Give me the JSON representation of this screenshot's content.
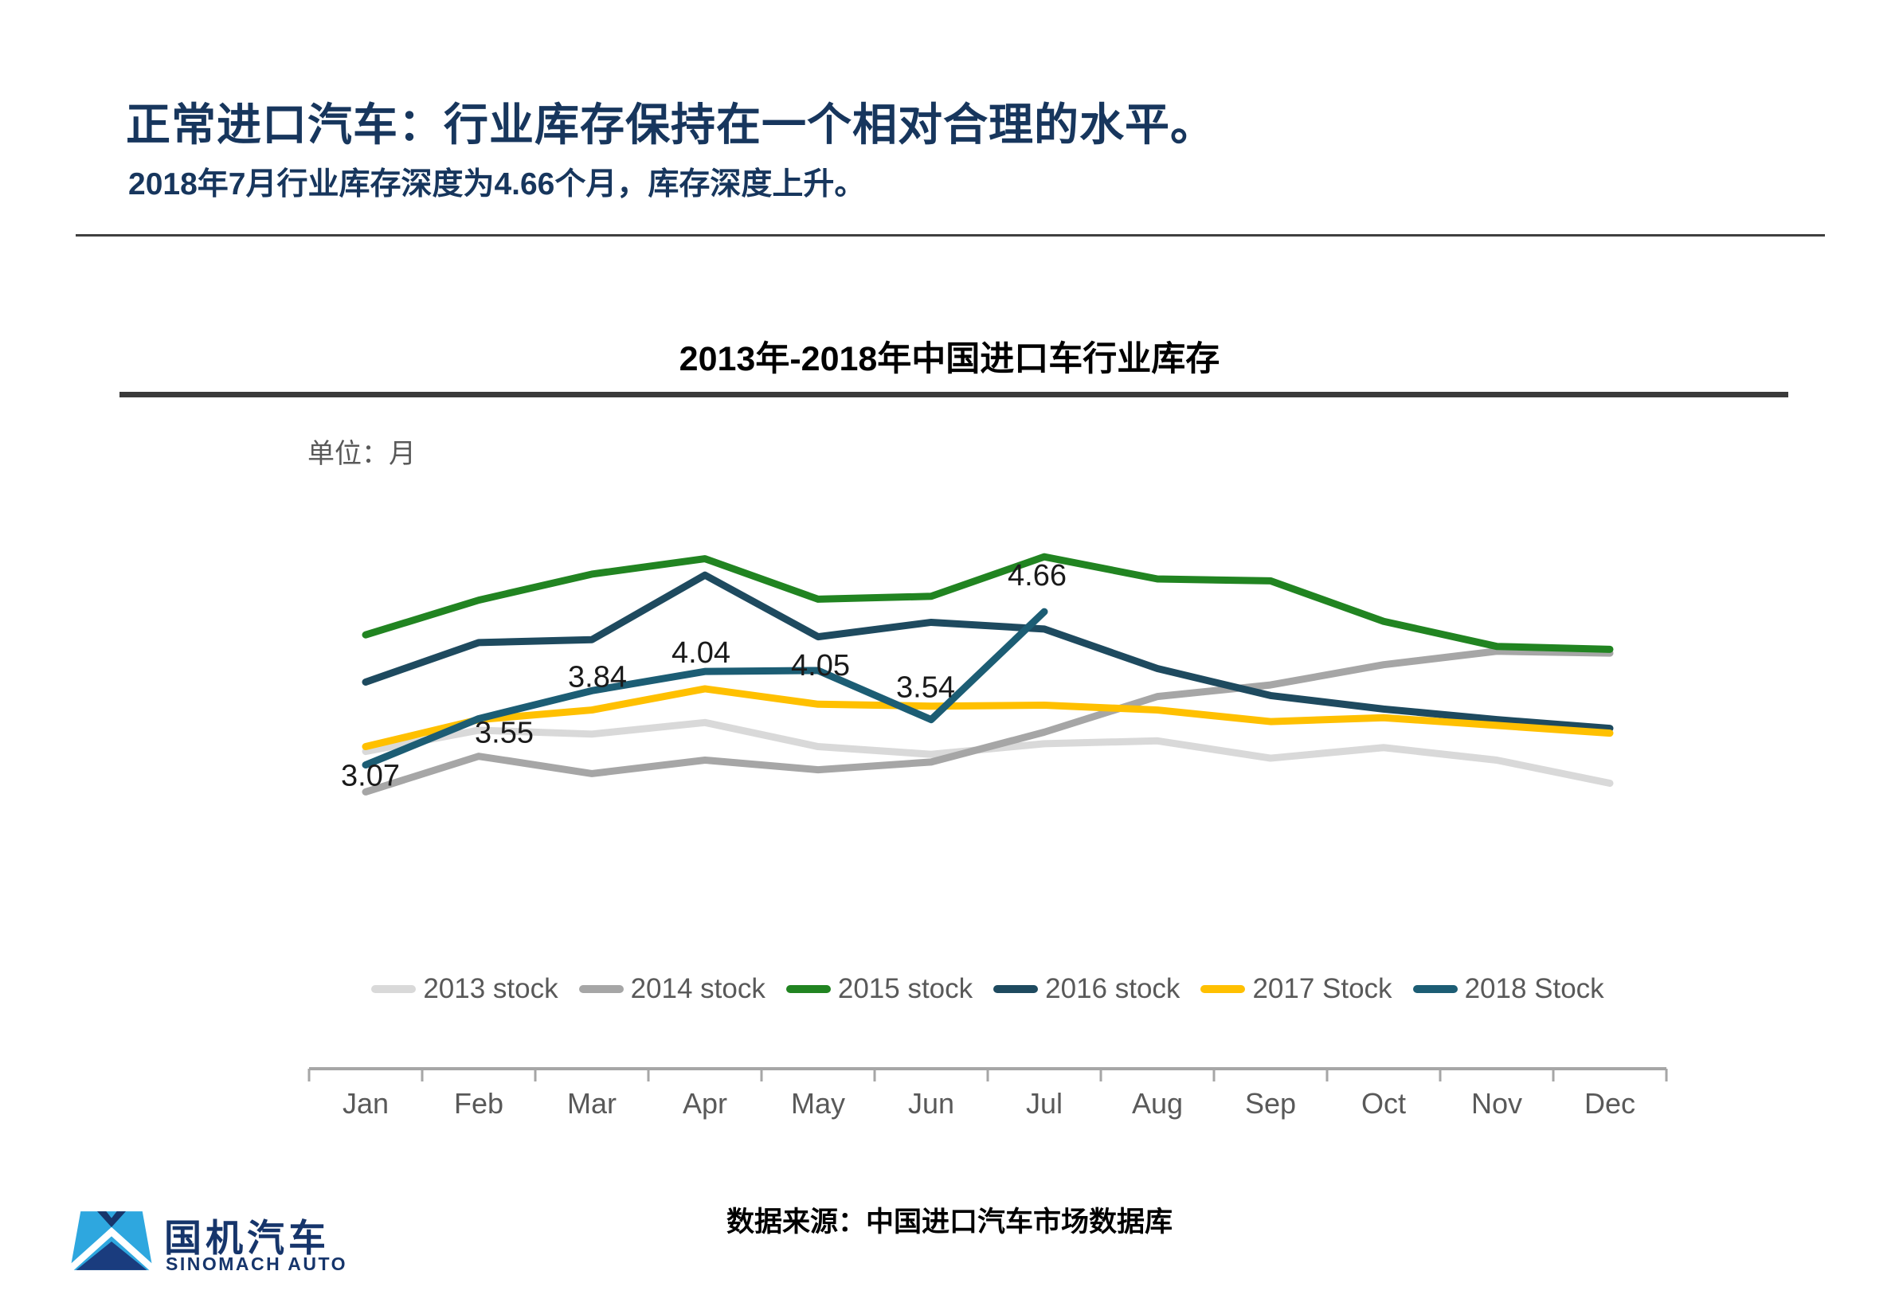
{
  "page": {
    "title": "正常进口汽车：行业库存保持在一个相对合理的水平。",
    "subtitle": "2018年7月行业库存深度为4.66个月，库存深度上升。",
    "source_note": "数据来源：中国进口汽车市场数据库"
  },
  "logo": {
    "name_cn": "国机汽车",
    "name_en": "SINOMACH AUTO",
    "mark_colors": {
      "light_blue": "#2ea7df",
      "dark_blue": "#1a3c7e",
      "text_navy": "#16356b"
    }
  },
  "chart_data": {
    "type": "line",
    "title": "2013年-2018年中国进口车行业库存",
    "unit_label": "单位：月",
    "categories": [
      "Jan",
      "Feb",
      "Mar",
      "Apr",
      "May",
      "Jun",
      "Jul",
      "Aug",
      "Sep",
      "Oct",
      "Nov",
      "Dec"
    ],
    "ylim": [
      0,
      5.6
    ],
    "grid": false,
    "legend_position": "bottom",
    "axis_color": "#a6a6a6",
    "label_color": "#595959",
    "data_label_color": "#1a1a1a",
    "series": [
      {
        "name": "2013 stock",
        "color": "#d9d9d9",
        "values": [
          3.21,
          3.43,
          3.39,
          3.51,
          3.26,
          3.18,
          3.29,
          3.32,
          3.14,
          3.25,
          3.12,
          2.88
        ]
      },
      {
        "name": "2014 stock",
        "color": "#a6a6a6",
        "values": [
          2.79,
          3.16,
          2.98,
          3.12,
          3.02,
          3.1,
          3.41,
          3.78,
          3.9,
          4.11,
          4.25,
          4.23
        ]
      },
      {
        "name": "2015 stock",
        "color": "#218421",
        "values": [
          4.42,
          4.78,
          5.05,
          5.21,
          4.79,
          4.82,
          5.23,
          5.0,
          4.98,
          4.56,
          4.3,
          4.27
        ]
      },
      {
        "name": "2016 stock",
        "color": "#1e4a5f",
        "values": [
          3.93,
          4.34,
          4.37,
          5.04,
          4.4,
          4.55,
          4.48,
          4.07,
          3.79,
          3.65,
          3.54,
          3.45
        ]
      },
      {
        "name": "2017 Stock",
        "color": "#ffc000",
        "values": [
          3.26,
          3.54,
          3.64,
          3.86,
          3.7,
          3.68,
          3.69,
          3.64,
          3.52,
          3.56,
          3.48,
          3.4
        ]
      },
      {
        "name": "2018 Stock",
        "color": "#1c5d74",
        "values": [
          3.07,
          3.55,
          3.84,
          4.04,
          4.05,
          3.54,
          4.66
        ],
        "data_labels": [
          "3.07",
          "3.55",
          "3.84",
          "4.04",
          "4.05",
          "3.54",
          "4.66"
        ]
      }
    ]
  }
}
